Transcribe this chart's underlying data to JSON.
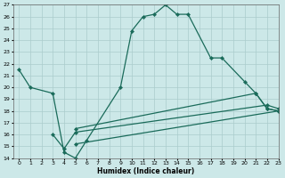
{
  "xlabel": "Humidex (Indice chaleur)",
  "bg_color": "#cce8e8",
  "grid_color": "#aacccc",
  "line_color": "#1a6b5a",
  "line1_x": [
    0,
    1,
    3,
    4,
    5,
    6,
    9,
    10,
    11,
    12,
    13,
    14,
    15,
    17,
    18,
    20,
    21,
    22,
    23
  ],
  "line1_y": [
    21.5,
    20.0,
    19.5,
    14.5,
    14.0,
    15.5,
    20.0,
    24.8,
    26.0,
    26.2,
    27.0,
    26.2,
    26.2,
    22.5,
    22.5,
    20.5,
    19.5,
    18.2,
    18.0
  ],
  "line2_x": [
    3,
    4,
    5,
    22,
    23
  ],
  "line2_y": [
    16.0,
    14.8,
    16.2,
    18.5,
    18.2
  ],
  "line3_x": [
    5,
    23
  ],
  "line3_y": [
    15.2,
    18.0
  ],
  "line4_x": [
    5,
    21,
    22,
    23
  ],
  "line4_y": [
    16.5,
    19.5,
    18.2,
    18.0
  ],
  "ylim": [
    14,
    27
  ],
  "xlim": [
    -0.5,
    23
  ],
  "yticks": [
    14,
    15,
    16,
    17,
    18,
    19,
    20,
    21,
    22,
    23,
    24,
    25,
    26,
    27
  ],
  "xticks": [
    0,
    1,
    2,
    3,
    4,
    5,
    6,
    7,
    8,
    9,
    10,
    11,
    12,
    13,
    14,
    15,
    16,
    17,
    18,
    19,
    20,
    21,
    22,
    23
  ]
}
